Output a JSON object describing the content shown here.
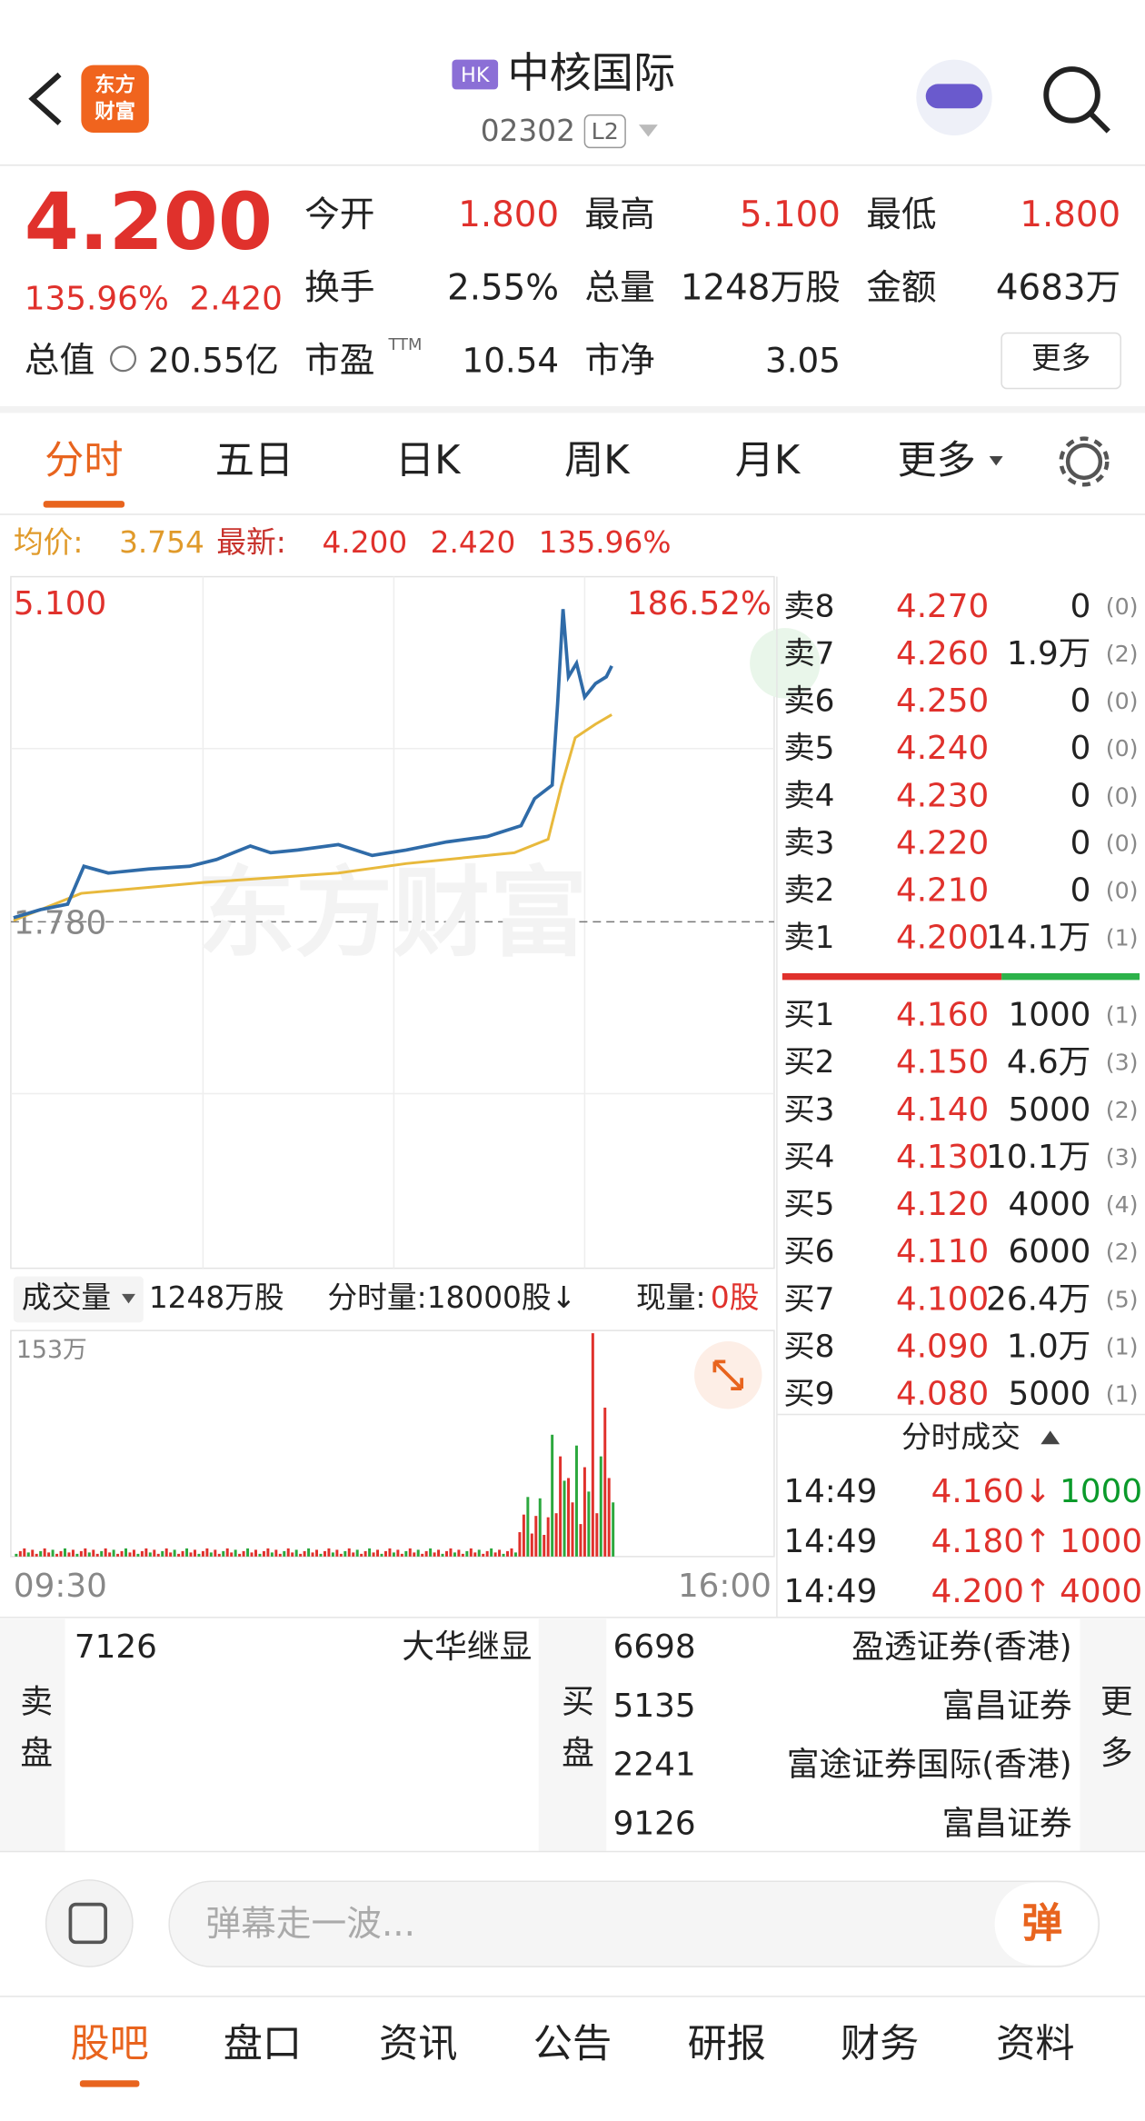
{
  "header": {
    "logo": [
      "东方",
      "财富"
    ],
    "badge": "HK",
    "name": "中核国际",
    "code": "02302",
    "level": "L2"
  },
  "quote": {
    "price": "4.200",
    "pct": "135.96%",
    "change": "2.420",
    "fields": [
      {
        "label": "今开",
        "value": "1.800"
      },
      {
        "label": "最高",
        "value": "5.100"
      },
      {
        "label": "最低",
        "value": "1.800"
      },
      {
        "label": "换手",
        "value": "2.55%"
      },
      {
        "label": "总量",
        "value": "1248万股"
      },
      {
        "label": "金额",
        "value": "4683万"
      }
    ],
    "cap_label": "总值",
    "cap_value": "20.55亿",
    "pe_label": "市盈",
    "pe_sup": "TTM",
    "pe_value": "10.54",
    "pb_label": "市净",
    "pb_value": "3.05",
    "more": "更多"
  },
  "tabs": [
    "分时",
    "五日",
    "日K",
    "周K",
    "月K",
    "更多"
  ],
  "info": {
    "avg_label": "均价:",
    "avg": "3.754",
    "last_label": "最新:",
    "last": "4.200",
    "change": "2.420",
    "pct": "135.96%"
  },
  "chart": {
    "high": "5.100",
    "high_pct": "186.52%",
    "low": "1.780",
    "watermark": "东方财富"
  },
  "volume": {
    "label": "成交量",
    "total": "1248万股",
    "minute": "分时量:18000股↓",
    "now_label": "现量:",
    "now": "0股",
    "max": "153万",
    "start": "09:30",
    "end": "16:00"
  },
  "asks": [
    [
      "卖8",
      "4.270",
      "0",
      "(0)"
    ],
    [
      "卖7",
      "4.260",
      "1.9万",
      "(2)"
    ],
    [
      "卖6",
      "4.250",
      "0",
      "(0)"
    ],
    [
      "卖5",
      "4.240",
      "0",
      "(0)"
    ],
    [
      "卖4",
      "4.230",
      "0",
      "(0)"
    ],
    [
      "卖3",
      "4.220",
      "0",
      "(0)"
    ],
    [
      "卖2",
      "4.210",
      "0",
      "(0)"
    ],
    [
      "卖1",
      "4.200",
      "14.1万",
      "(1)"
    ]
  ],
  "bids": [
    [
      "买1",
      "4.160",
      "1000",
      "(1)"
    ],
    [
      "买2",
      "4.150",
      "4.6万",
      "(3)"
    ],
    [
      "买3",
      "4.140",
      "5000",
      "(2)"
    ],
    [
      "买4",
      "4.130",
      "10.1万",
      "(3)"
    ],
    [
      "买5",
      "4.120",
      "4000",
      "(4)"
    ],
    [
      "买6",
      "4.110",
      "6000",
      "(2)"
    ],
    [
      "买7",
      "4.100",
      "26.4万",
      "(5)"
    ],
    [
      "买8",
      "4.090",
      "1.0万",
      "(1)"
    ],
    [
      "买9",
      "4.080",
      "5000",
      "(1)"
    ]
  ],
  "trades": {
    "title": "分时成交",
    "rows": [
      [
        "14:49",
        "4.160↓",
        "1000"
      ],
      [
        "14:49",
        "4.180↑",
        "1000"
      ],
      [
        "14:49",
        "4.200↑",
        "4000"
      ]
    ]
  },
  "brokers": {
    "sell_label": "卖盘",
    "sell": [
      [
        "7126",
        "大华继显"
      ]
    ],
    "buy_label": "买盘",
    "buy": [
      [
        "6698",
        "盈透证券(香港)"
      ],
      [
        "5135",
        "富昌证券"
      ],
      [
        "2241",
        "富途证券国际(香港)"
      ],
      [
        "9126",
        "富昌证券"
      ]
    ],
    "more": "更多"
  },
  "comment": {
    "placeholder": "弹幕走一波...",
    "button": "弹"
  },
  "nav": [
    "股吧",
    "盘口",
    "资讯",
    "公告",
    "研报",
    "财务",
    "资料"
  ]
}
